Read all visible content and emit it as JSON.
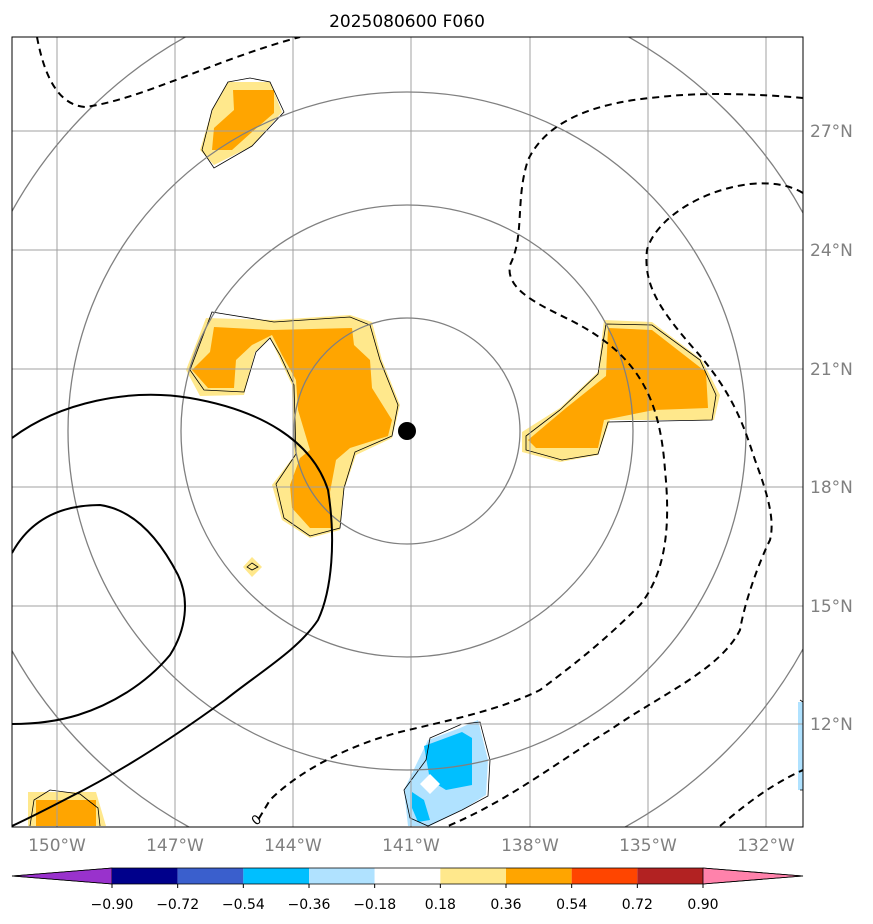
{
  "chart_data": {
    "type": "map",
    "title": "2025080600 F060",
    "x_ticks": [
      "150°W",
      "147°W",
      "144°W",
      "141°W",
      "138°W",
      "135°W",
      "132°W"
    ],
    "y_ticks": [
      "27°N",
      "24°N",
      "21°N",
      "18°N",
      "15°N",
      "12°N"
    ],
    "center": {
      "lon_label": "141°W",
      "lat_label": "19.4°N"
    },
    "range_rings_deg": [
      3,
      6,
      9,
      12
    ],
    "colorbar": {
      "levels": [
        "−0.90",
        "−0.72",
        "−0.54",
        "−0.36",
        "−0.18",
        "0.18",
        "0.36",
        "0.54",
        "0.72",
        "0.90"
      ],
      "colors": [
        "#9932cc",
        "#00008b",
        "#3a5fcd",
        "#00bfff",
        "#b0e2ff",
        "#ffffff",
        "#ffe88c",
        "#ffa500",
        "#ff4500",
        "#b22222",
        "#ff82ab"
      ]
    },
    "contour_label": "0"
  }
}
